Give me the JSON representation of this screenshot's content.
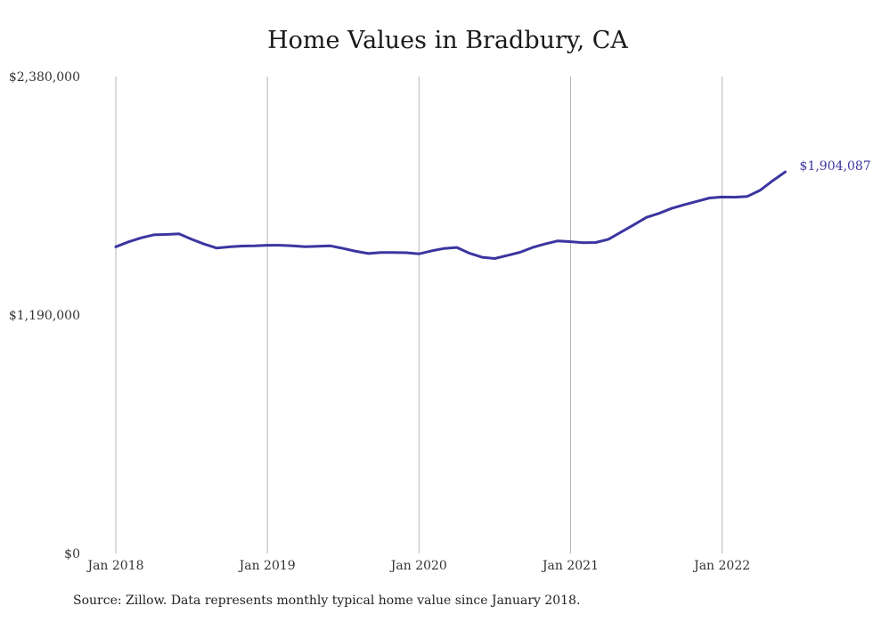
{
  "chart_data": {
    "type": "line",
    "title": "Home Values in Bradbury, CA",
    "xlabel": "",
    "ylabel": "",
    "x_ticks": [
      "Jan 2018",
      "Jan 2019",
      "Jan 2020",
      "Jan 2021",
      "Jan 2022"
    ],
    "y_ticks": [
      "$0",
      "$1,190,000",
      "$2,380,000"
    ],
    "ylim": [
      0,
      2380000
    ],
    "grid": "vertical",
    "color": "#3b36a0",
    "end_label": "$1,904,087",
    "series": [
      {
        "x": [
          "2018-01",
          "2018-02",
          "2018-03",
          "2018-04",
          "2018-05",
          "2018-06",
          "2018-07",
          "2018-08",
          "2018-09",
          "2018-10",
          "2018-11",
          "2018-12",
          "2019-01",
          "2019-02",
          "2019-03",
          "2019-04",
          "2019-05",
          "2019-06",
          "2019-07",
          "2019-08",
          "2019-09",
          "2019-10",
          "2019-11",
          "2019-12",
          "2020-01",
          "2020-02",
          "2020-03",
          "2020-04",
          "2020-05",
          "2020-06",
          "2020-07",
          "2020-08",
          "2020-09",
          "2020-10",
          "2020-11",
          "2020-12",
          "2021-01",
          "2021-02",
          "2021-03",
          "2021-04",
          "2021-05",
          "2021-06",
          "2021-07",
          "2021-08",
          "2021-09",
          "2021-10",
          "2021-11",
          "2021-12",
          "2022-01",
          "2022-02",
          "2022-03",
          "2022-04",
          "2022-05",
          "2022-06"
        ],
        "values": [
          1530000,
          1555000,
          1575000,
          1590000,
          1592000,
          1595000,
          1568000,
          1544000,
          1524000,
          1530000,
          1534000,
          1535000,
          1538000,
          1538000,
          1535000,
          1531000,
          1533000,
          1535000,
          1522000,
          1508000,
          1497000,
          1502000,
          1502000,
          1501000,
          1495000,
          1510000,
          1522000,
          1527000,
          1498000,
          1478000,
          1472000,
          1487000,
          1503000,
          1527000,
          1545000,
          1560000,
          1556000,
          1551000,
          1552000,
          1568000,
          1604000,
          1640000,
          1677000,
          1697000,
          1722000,
          1740000,
          1757000,
          1774000,
          1779000,
          1778000,
          1782000,
          1812000,
          1860000,
          1904087
        ]
      }
    ]
  },
  "footer": {
    "source": "Source: Zillow. Data represents monthly typical home value since January 2018."
  }
}
